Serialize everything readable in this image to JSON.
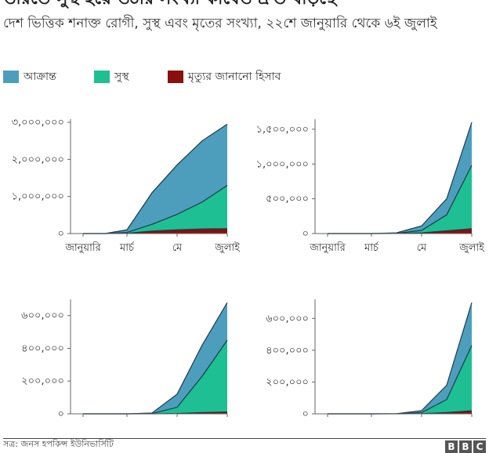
{
  "title": "ভারতে সুস্থ হয়ে ওঠার সংখ্যা কাবেও দ্রুত বাড়ছে",
  "subtitle": "দেশ ভিত্তিক শনাক্ত রোগী, সুস্থ এবং মৃতের সংখ্যা, ২২শে জানুয়ারি থেকে ৬ই জুলাই",
  "legend": [
    {
      "label": "আক্রান্ত",
      "color": "#4d9ebd"
    },
    {
      "label": "সুস্থ",
      "color": "#1ebf92"
    },
    {
      "label": "মৃত্যুর জানানো হিসাব",
      "color": "#8a0f0f"
    }
  ],
  "footer": {
    "source": "সূত্র: জনস হপকিন্স ইউনিভার্সিটি",
    "logo": [
      "B",
      "B",
      "C"
    ]
  },
  "chart_data": [
    {
      "type": "area",
      "x_labels": [
        "জানুয়ারি",
        "মার্চ",
        "মে",
        "জুলাই"
      ],
      "y_ticks": [
        0,
        1000000,
        2000000,
        3000000
      ],
      "y_tick_labels": [
        "০",
        "১,০০০,০০০",
        "২,০০০,০০০",
        "৩,০০০,০০০"
      ],
      "ylim": [
        0,
        3000000
      ],
      "x_months": [
        1,
        2,
        3,
        4,
        5,
        6,
        7
      ],
      "series": [
        {
          "name": "আক্রান্ত",
          "values": [
            0,
            0,
            100000,
            1100000,
            1850000,
            2500000,
            2950000
          ],
          "color": "#4d9ebd"
        },
        {
          "name": "সুস্থ",
          "values": [
            0,
            0,
            30000,
            250000,
            520000,
            850000,
            1300000
          ],
          "color": "#1ebf92"
        },
        {
          "name": "মৃত্যুর জানানো হিসাব",
          "values": [
            0,
            0,
            5000,
            70000,
            100000,
            125000,
            130000
          ],
          "color": "#8a0f0f"
        }
      ]
    },
    {
      "type": "area",
      "x_labels": [
        "জানুয়ারি",
        "মার্চ",
        "মে",
        "জুলাই"
      ],
      "y_ticks": [
        0,
        500000,
        1000000,
        1500000
      ],
      "y_tick_labels": [
        "০",
        "৫০০,০০০",
        "১,০০০,০০০",
        "১,৫০০,০০০"
      ],
      "ylim": [
        0,
        1600000
      ],
      "x_months": [
        1,
        2,
        3,
        4,
        5,
        6,
        7
      ],
      "series": [
        {
          "name": "আক্রান্ত",
          "values": [
            0,
            0,
            0,
            10000,
            110000,
            500000,
            1600000
          ],
          "color": "#4d9ebd"
        },
        {
          "name": "সুস্থ",
          "values": [
            0,
            0,
            0,
            3000,
            45000,
            270000,
            980000
          ],
          "color": "#1ebf92"
        },
        {
          "name": "মৃত্যুর জানানো হিসাব",
          "values": [
            0,
            0,
            0,
            500,
            10000,
            40000,
            70000
          ],
          "color": "#8a0f0f"
        }
      ]
    },
    {
      "type": "area",
      "x_labels": [],
      "y_ticks": [
        0,
        200000,
        400000,
        600000
      ],
      "y_tick_labels": [
        "০",
        "২০০,০০০",
        "৪০০,০০০",
        "৬০০,০০০"
      ],
      "ylim": [
        0,
        680000
      ],
      "x_months": [
        1,
        2,
        3,
        4,
        5,
        6,
        7
      ],
      "series": [
        {
          "name": "আক্রান্ত",
          "values": [
            0,
            0,
            0,
            5000,
            120000,
            420000,
            680000
          ],
          "color": "#4d9ebd"
        },
        {
          "name": "সুস্থ",
          "values": [
            0,
            0,
            0,
            1000,
            40000,
            230000,
            450000
          ],
          "color": "#1ebf92"
        },
        {
          "name": "মৃত্যুর জানানো হিসাব",
          "values": [
            0,
            0,
            0,
            100,
            2000,
            8000,
            11000
          ],
          "color": "#8a0f0f"
        }
      ]
    },
    {
      "type": "area",
      "x_labels": [],
      "y_ticks": [
        0,
        200000,
        400000,
        600000
      ],
      "y_tick_labels": [
        "০",
        "২০০,০০০",
        "৪০০,০০০",
        "৬০০,০০০"
      ],
      "ylim": [
        0,
        700000
      ],
      "x_months": [
        1,
        2,
        3,
        4,
        5,
        6,
        7
      ],
      "series": [
        {
          "name": "আক্রান্ত",
          "values": [
            0,
            0,
            0,
            1000,
            20000,
            180000,
            700000
          ],
          "color": "#4d9ebd"
        },
        {
          "name": "সুস্থ",
          "values": [
            0,
            0,
            0,
            300,
            8000,
            90000,
            430000
          ],
          "color": "#1ebf92"
        },
        {
          "name": "মৃত্যুর জানানো হিসাব",
          "values": [
            0,
            0,
            0,
            50,
            1000,
            8000,
            19000
          ],
          "color": "#8a0f0f"
        }
      ]
    }
  ]
}
